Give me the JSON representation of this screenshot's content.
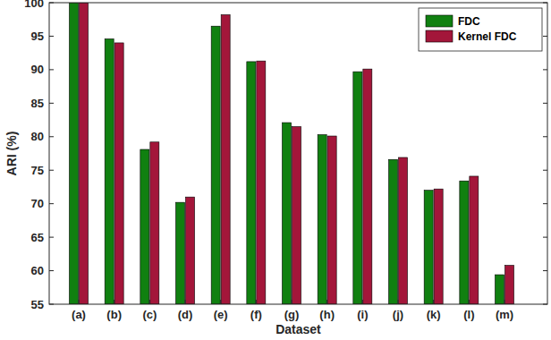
{
  "chart_data": {
    "type": "bar",
    "x_label": "Dataset",
    "y_label": "ARI (%)",
    "categories": [
      "(a)",
      "(b)",
      "(c)",
      "(d)",
      "(e)",
      "(f)",
      "(g)",
      "(h)",
      "(i)",
      "(j)",
      "(k)",
      "(l)",
      "(m)"
    ],
    "series": [
      {
        "name": "FDC",
        "color": "#108010",
        "values": [
          100,
          94.6,
          78.1,
          70.2,
          96.5,
          91.2,
          82.1,
          80.3,
          89.7,
          76.6,
          72.0,
          73.4,
          59.4
        ]
      },
      {
        "name": "Kernel FDC",
        "color": "#a3163a",
        "values": [
          100,
          94.0,
          79.2,
          71.0,
          98.2,
          91.3,
          81.5,
          80.1,
          90.1,
          76.9,
          72.2,
          74.1,
          60.8
        ]
      }
    ],
    "ylim": [
      55,
      100
    ],
    "yticks": [
      55,
      60,
      65,
      70,
      75,
      80,
      85,
      90,
      95,
      100
    ],
    "grid": false,
    "legend": "top-right"
  }
}
